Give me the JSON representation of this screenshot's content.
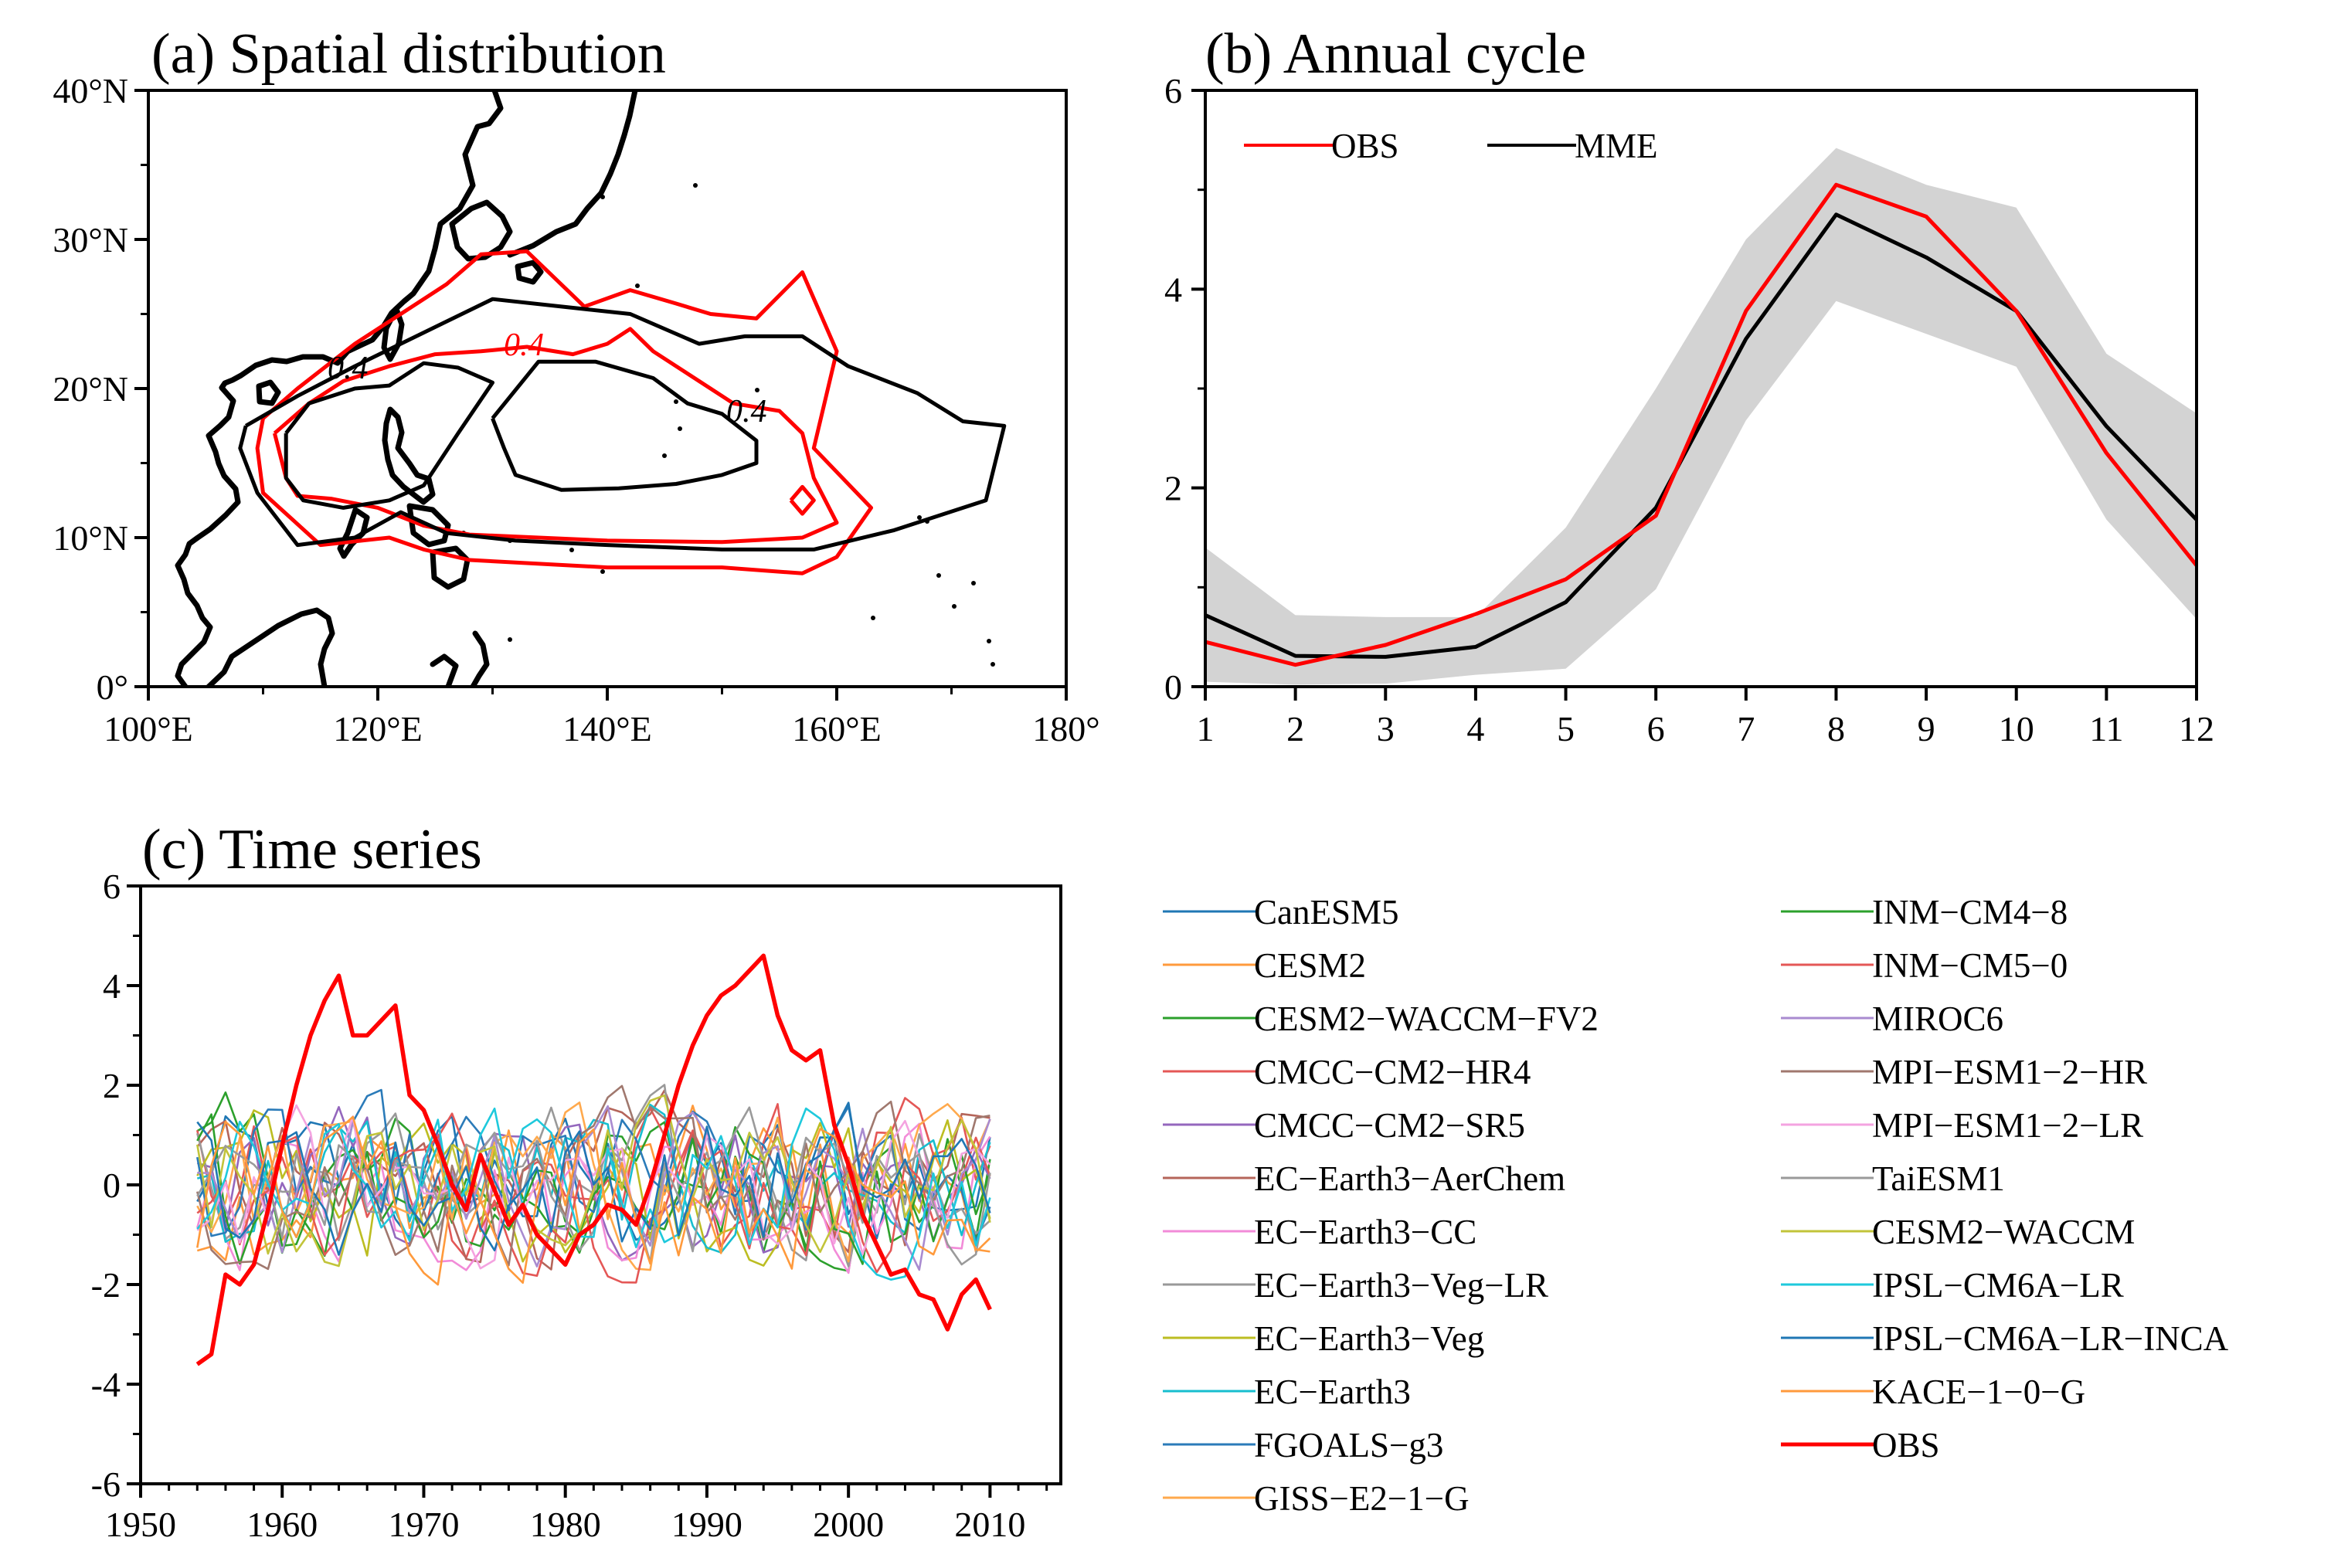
{
  "chart_data": [
    {
      "type": "contour-map",
      "title": "(a) Spatial distribution",
      "x_ticks": [
        "100°E",
        "120°E",
        "140°E",
        "160°E",
        "180°"
      ],
      "y_ticks": [
        "0°",
        "10°N",
        "20°N",
        "30°N",
        "40°N"
      ],
      "xlim": [
        100,
        180
      ],
      "ylim": [
        0,
        40
      ],
      "contour_level": 0.4,
      "contour_labels": [
        "0.4",
        "0.4",
        "0.4"
      ],
      "series": [
        {
          "name": "OBS",
          "color": "#ff0000",
          "contours": [
            [
              [
                110,
                18
              ],
              [
                113,
                20
              ],
              [
                118,
                23
              ],
              [
                122,
                25
              ],
              [
                126,
                27
              ],
              [
                129,
                29
              ],
              [
                133,
                29.2
              ],
              [
                138,
                25.5
              ],
              [
                142,
                26.6
              ],
              [
                146,
                25.7
              ],
              [
                149,
                25
              ],
              [
                153,
                24.7
              ],
              [
                157,
                27.8
              ],
              [
                160,
                22.5
              ],
              [
                158,
                16
              ],
              [
                163,
                12
              ],
              [
                160,
                8.7
              ],
              [
                157,
                7.6
              ],
              [
                150,
                8
              ],
              [
                140,
                8
              ],
              [
                128,
                8.5
              ],
              [
                124,
                9.2
              ],
              [
                121,
                10
              ],
              [
                115,
                9.5
              ],
              [
                110,
                13
              ],
              [
                109.5,
                16
              ],
              [
                110,
                18
              ]
            ],
            [
              [
                111,
                17
              ],
              [
                114,
                19
              ],
              [
                117,
                20.5
              ],
              [
                121,
                21.5
              ],
              [
                125,
                22.3
              ],
              [
                129,
                22.5
              ],
              [
                133,
                22.8
              ],
              [
                137,
                22.3
              ],
              [
                140,
                23
              ],
              [
                142,
                24
              ],
              [
                144,
                22.5
              ],
              [
                148,
                20.5
              ],
              [
                151,
                19
              ],
              [
                155,
                18.5
              ],
              [
                157,
                17
              ],
              [
                158,
                14
              ],
              [
                160,
                11
              ],
              [
                157,
                10
              ],
              [
                150,
                9.7
              ],
              [
                140,
                9.8
              ],
              [
                128,
                10.2
              ],
              [
                124,
                10.8
              ],
              [
                120,
                12
              ],
              [
                116,
                12.6
              ],
              [
                113,
                12.8
              ],
              [
                112,
                14
              ],
              [
                111,
                17
              ]
            ],
            [
              [
                156,
                12.5
              ],
              [
                157,
                13.4
              ],
              [
                158,
                12.5
              ],
              [
                157,
                11.6
              ],
              [
                156,
                12.5
              ]
            ]
          ]
        },
        {
          "name": "MME",
          "color": "#000000",
          "contours": [
            [
              [
                108.5,
                17.5
              ],
              [
                113,
                19.5
              ],
              [
                118,
                21.5
              ],
              [
                122,
                23
              ],
              [
                126,
                24.5
              ],
              [
                130,
                26
              ],
              [
                136,
                25.5
              ],
              [
                142,
                25
              ],
              [
                148,
                23
              ],
              [
                152,
                23.5
              ],
              [
                157,
                23.5
              ],
              [
                161,
                21.5
              ],
              [
                167,
                19.7
              ],
              [
                171,
                17.8
              ],
              [
                174.6,
                17.5
              ],
              [
                173,
                12.5
              ],
              [
                165,
                10.5
              ],
              [
                158,
                9.2
              ],
              [
                150,
                9.2
              ],
              [
                140,
                9.5
              ],
              [
                132,
                9.8
              ],
              [
                126,
                10.3
              ],
              [
                122,
                11.7
              ],
              [
                118,
                10
              ],
              [
                113,
                9.5
              ],
              [
                109.5,
                13
              ],
              [
                108,
                16
              ],
              [
                108.5,
                17.5
              ]
            ],
            [
              [
                112,
                17
              ],
              [
                114,
                19
              ],
              [
                118,
                20
              ],
              [
                121,
                20.2
              ],
              [
                124,
                21.7
              ],
              [
                127,
                21.4
              ],
              [
                130,
                20.4
              ],
              [
                127,
                17
              ],
              [
                124,
                13.5
              ],
              [
                121,
                12.5
              ],
              [
                117,
                12
              ],
              [
                113.5,
                12.5
              ],
              [
                112,
                14
              ],
              [
                112,
                17
              ]
            ],
            [
              [
                130,
                18
              ],
              [
                134,
                21.8
              ],
              [
                139,
                21.8
              ],
              [
                144,
                20.7
              ],
              [
                147,
                19
              ],
              [
                150,
                18.3
              ],
              [
                153,
                16.5
              ],
              [
                153,
                15
              ],
              [
                150,
                14.2
              ],
              [
                146,
                13.6
              ],
              [
                141,
                13.3
              ],
              [
                136,
                13.2
              ],
              [
                132,
                14.2
              ],
              [
                131,
                16
              ],
              [
                130,
                18
              ]
            ]
          ]
        }
      ]
    },
    {
      "type": "line",
      "title": "(b) Annual cycle",
      "x": [
        1,
        2,
        3,
        4,
        5,
        6,
        7,
        8,
        9,
        10,
        11,
        12
      ],
      "xlim": [
        1,
        12
      ],
      "ylim": [
        0,
        6
      ],
      "y_ticks": [
        0,
        2,
        4,
        6
      ],
      "legend": [
        "OBS",
        "MME"
      ],
      "series": [
        {
          "name": "OBS",
          "color": "#ff0000",
          "values": [
            0.45,
            0.22,
            0.42,
            0.73,
            1.08,
            1.72,
            3.78,
            5.05,
            4.73,
            3.78,
            2.35,
            1.22
          ]
        },
        {
          "name": "MME",
          "color": "#000000",
          "values": [
            0.72,
            0.31,
            0.3,
            0.4,
            0.85,
            1.8,
            3.5,
            4.75,
            4.32,
            3.78,
            2.62,
            1.68
          ]
        }
      ],
      "band": {
        "color": "#d3d3d3",
        "upper": [
          1.4,
          0.72,
          0.7,
          0.7,
          1.6,
          3.0,
          4.5,
          5.42,
          5.05,
          4.82,
          3.35,
          2.75
        ],
        "lower": [
          0.05,
          0.02,
          0.03,
          0.12,
          0.18,
          0.98,
          2.68,
          3.88,
          3.55,
          3.22,
          1.68,
          0.68
        ]
      }
    },
    {
      "type": "line",
      "title": "(c) Time series",
      "xlim": [
        1950,
        2015
      ],
      "ylim": [
        -6,
        6
      ],
      "x_ticks": [
        1950,
        1960,
        1970,
        1980,
        1990,
        2000,
        2010
      ],
      "y_ticks": [
        -6,
        -4,
        -2,
        0,
        2,
        4,
        6
      ],
      "x_start": 1954,
      "x_end": 2010,
      "obs": {
        "name": "OBS",
        "color": "#ff0000",
        "x": [
          1954,
          1955,
          1956,
          1957,
          1958,
          1959,
          1960,
          1961,
          1962,
          1963,
          1964,
          1965,
          1966,
          1967,
          1968,
          1969,
          1970,
          1971,
          1972,
          1973,
          1974,
          1975,
          1976,
          1977,
          1978,
          1979,
          1980,
          1981,
          1982,
          1983,
          1984,
          1985,
          1986,
          1987,
          1988,
          1989,
          1990,
          1991,
          1992,
          1993,
          1994,
          1995,
          1996,
          1997,
          1998,
          1999,
          2000,
          2001,
          2002,
          2003,
          2004,
          2005,
          2006,
          2007,
          2008,
          2009,
          2010
        ],
        "values": [
          -3.6,
          -3.4,
          -1.8,
          -2.0,
          -1.6,
          -0.5,
          0.8,
          2.0,
          3.0,
          3.7,
          4.2,
          3.0,
          3.0,
          3.3,
          3.6,
          1.8,
          1.5,
          0.8,
          0.0,
          -0.5,
          0.6,
          -0.1,
          -0.8,
          -0.4,
          -1.0,
          -1.3,
          -1.6,
          -1.0,
          -0.8,
          -0.4,
          -0.5,
          -0.8,
          0.0,
          1.0,
          2.0,
          2.8,
          3.4,
          3.8,
          4.0,
          4.3,
          4.6,
          3.4,
          2.7,
          2.5,
          2.7,
          1.2,
          0.4,
          -0.6,
          -1.2,
          -1.8,
          -1.7,
          -2.2,
          -2.3,
          -2.9,
          -2.2,
          -1.9,
          -2.5
        ]
      },
      "models": [
        {
          "name": "CanESM5",
          "color": "#1f77b4"
        },
        {
          "name": "CESM2",
          "color": "#ff9a3c"
        },
        {
          "name": "CESM2−WACCM−FV2",
          "color": "#2ca02c"
        },
        {
          "name": "CMCC−CM2−HR4",
          "color": "#e45756"
        },
        {
          "name": "CMCC−CM2−SR5",
          "color": "#9467bd"
        },
        {
          "name": "EC−Earth3−AerChem",
          "color": "#b5655a"
        },
        {
          "name": "EC−Earth3−CC",
          "color": "#f28bd8"
        },
        {
          "name": "EC−Earth3−Veg−LR",
          "color": "#999999"
        },
        {
          "name": "EC−Earth3−Veg",
          "color": "#bcbd22"
        },
        {
          "name": "EC−Earth3",
          "color": "#17becf"
        },
        {
          "name": "FGOALS−g3",
          "color": "#2b7bb9"
        },
        {
          "name": "GISS−E2−1−G",
          "color": "#ffa94d"
        },
        {
          "name": "INM−CM4−8",
          "color": "#2ca02c"
        },
        {
          "name": "INM−CM5−0",
          "color": "#e45756"
        },
        {
          "name": "MIROC6",
          "color": "#a98bd0"
        },
        {
          "name": "MPI−ESM1−2−HR",
          "color": "#a0786e"
        },
        {
          "name": "MPI−ESM1−2−LR",
          "color": "#f4a3e0"
        },
        {
          "name": "TaiESM1",
          "color": "#9a9a9a"
        },
        {
          "name": "CESM2−WACCM",
          "color": "#c2c43a"
        },
        {
          "name": "IPSL−CM6A−LR",
          "color": "#1ec9dc"
        },
        {
          "name": "IPSL−CM6A−LR−INCA",
          "color": "#1f77b4"
        },
        {
          "name": "KACE−1−0−G",
          "color": "#ff9a3c"
        }
      ],
      "legend": [
        "CanESM5",
        "CESM2",
        "CESM2−WACCM−FV2",
        "CMCC−CM2−HR4",
        "CMCC−CM2−SR5",
        "EC−Earth3−AerChem",
        "EC−Earth3−CC",
        "EC−Earth3−Veg−LR",
        "EC−Earth3−Veg",
        "EC−Earth3",
        "FGOALS−g3",
        "GISS−E2−1−G",
        "INM−CM4−8",
        "INM−CM5−0",
        "MIROC6",
        "MPI−ESM1−2−HR",
        "MPI−ESM1−2−LR",
        "TaiESM1",
        "CESM2−WACCM",
        "IPSL−CM6A−LR",
        "IPSL−CM6A−LR−INCA",
        "KACE−1−0−G",
        "OBS"
      ]
    }
  ]
}
